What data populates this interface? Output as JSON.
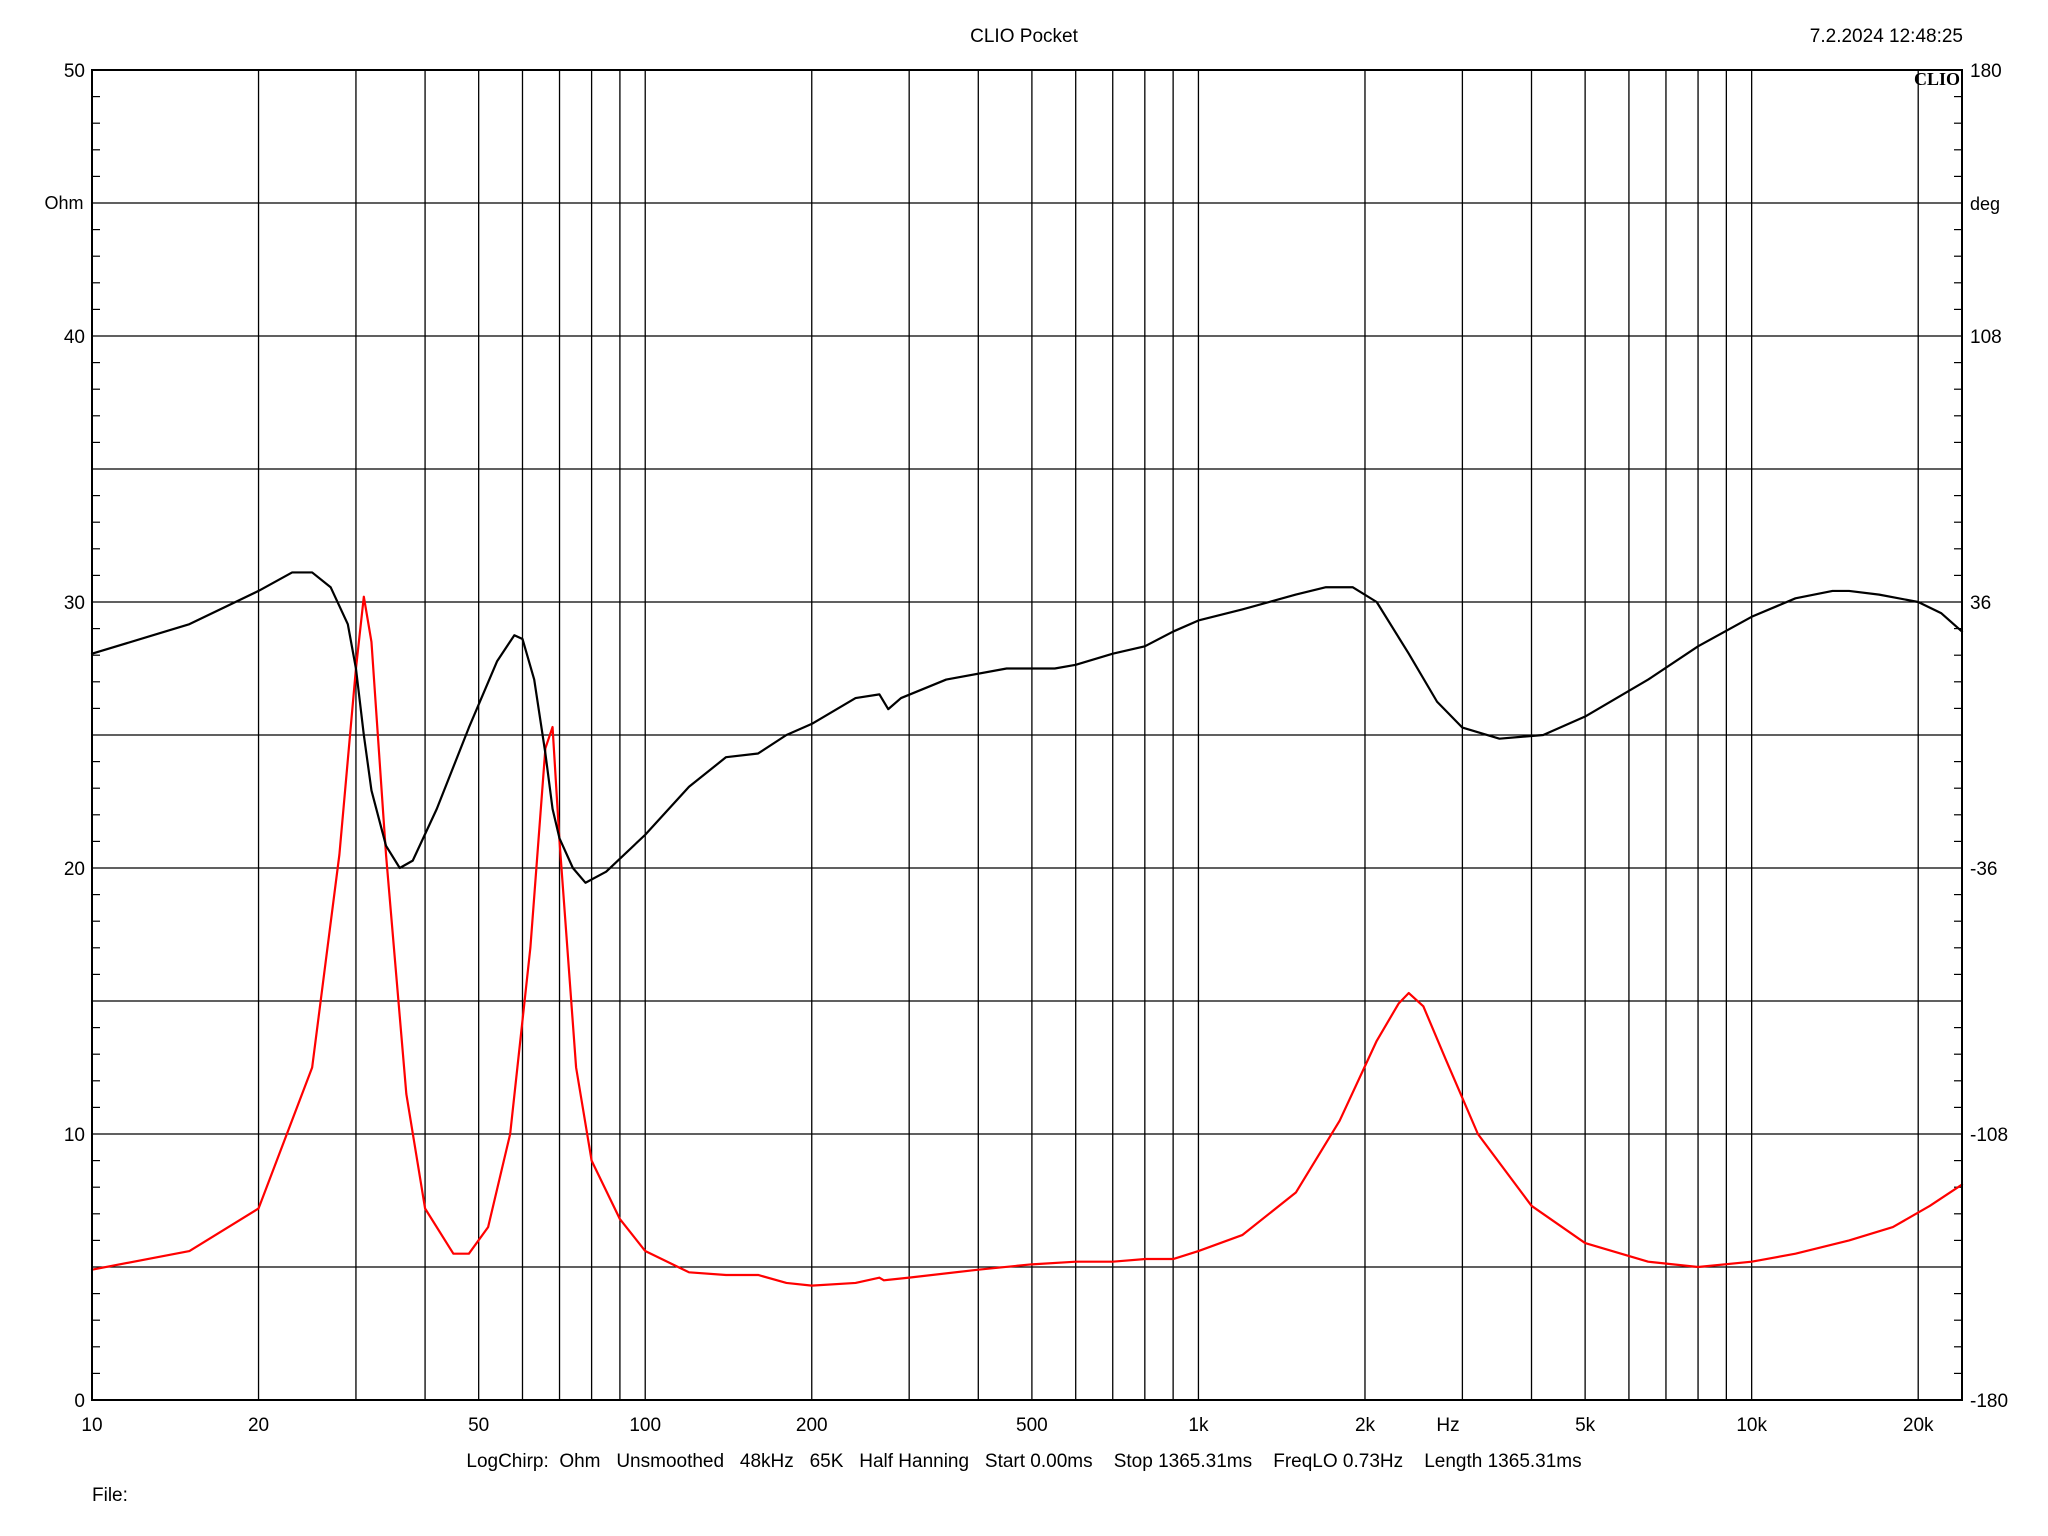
{
  "header": {
    "title": "CLIO Pocket",
    "timestamp": "7.2.2024 12:48:25",
    "logo": "CLIO"
  },
  "footer": {
    "settings": "LogChirp:  Ohm   Unsmoothed   48kHz   65K   Half Hanning   Start 0.00ms    Stop 1365.31ms    FreqLO 0.73Hz    Length 1365.31ms",
    "file_label": "File:"
  },
  "chart_data": {
    "type": "line",
    "x_scale": "log",
    "xlim": [
      10,
      24000
    ],
    "xlabel": "Hz",
    "x_ticks": [
      {
        "value": 10,
        "label": "10"
      },
      {
        "value": 20,
        "label": "20"
      },
      {
        "value": 50,
        "label": "50"
      },
      {
        "value": 100,
        "label": "100"
      },
      {
        "value": 200,
        "label": "200"
      },
      {
        "value": 500,
        "label": "500"
      },
      {
        "value": 1000,
        "label": "1k"
      },
      {
        "value": 2000,
        "label": "2k"
      },
      {
        "value": 5000,
        "label": "5k"
      },
      {
        "value": 10000,
        "label": "10k"
      },
      {
        "value": 20000,
        "label": "20k"
      }
    ],
    "y_left": {
      "label": "Ohm",
      "ylim": [
        0,
        50
      ],
      "ticks": [
        0,
        10,
        20,
        30,
        40,
        50
      ]
    },
    "y_right": {
      "label": "deg",
      "ylim": [
        -180,
        180
      ],
      "ticks": [
        -180,
        -108,
        -36,
        36,
        108,
        180
      ]
    },
    "grid": true,
    "series": [
      {
        "axis": "left",
        "color": "#ff0000",
        "points": [
          [
            10,
            4.9
          ],
          [
            15,
            5.6
          ],
          [
            20,
            7.2
          ],
          [
            25,
            12.5
          ],
          [
            28,
            20.5
          ],
          [
            30,
            27.5
          ],
          [
            31,
            30.2
          ],
          [
            32,
            28.5
          ],
          [
            34,
            20.5
          ],
          [
            37,
            11.5
          ],
          [
            40,
            7.2
          ],
          [
            45,
            5.5
          ],
          [
            48,
            5.5
          ],
          [
            52,
            6.5
          ],
          [
            57,
            10.0
          ],
          [
            62,
            17.0
          ],
          [
            66,
            24.5
          ],
          [
            68,
            25.3
          ],
          [
            70,
            21.0
          ],
          [
            75,
            12.5
          ],
          [
            80,
            9.0
          ],
          [
            90,
            6.8
          ],
          [
            100,
            5.6
          ],
          [
            120,
            4.8
          ],
          [
            140,
            4.7
          ],
          [
            160,
            4.7
          ],
          [
            180,
            4.4
          ],
          [
            200,
            4.3
          ],
          [
            240,
            4.4
          ],
          [
            265,
            4.6
          ],
          [
            270,
            4.5
          ],
          [
            300,
            4.6
          ],
          [
            400,
            4.9
          ],
          [
            500,
            5.1
          ],
          [
            600,
            5.2
          ],
          [
            700,
            5.2
          ],
          [
            800,
            5.3
          ],
          [
            900,
            5.3
          ],
          [
            1000,
            5.6
          ],
          [
            1200,
            6.2
          ],
          [
            1500,
            7.8
          ],
          [
            1800,
            10.5
          ],
          [
            2100,
            13.5
          ],
          [
            2300,
            14.9
          ],
          [
            2400,
            15.3
          ],
          [
            2550,
            14.8
          ],
          [
            2800,
            12.8
          ],
          [
            3200,
            10.0
          ],
          [
            4000,
            7.3
          ],
          [
            5000,
            5.9
          ],
          [
            6500,
            5.2
          ],
          [
            8000,
            5.0
          ],
          [
            10000,
            5.2
          ],
          [
            12000,
            5.5
          ],
          [
            15000,
            6.0
          ],
          [
            18000,
            6.5
          ],
          [
            21000,
            7.3
          ],
          [
            24000,
            8.1
          ]
        ]
      },
      {
        "axis": "right",
        "color": "#000000",
        "points": [
          [
            10,
            22
          ],
          [
            15,
            30
          ],
          [
            20,
            39
          ],
          [
            23,
            44
          ],
          [
            25,
            44
          ],
          [
            27,
            40
          ],
          [
            29,
            30
          ],
          [
            30,
            18
          ],
          [
            31,
            0
          ],
          [
            32,
            -15
          ],
          [
            34,
            -30
          ],
          [
            36,
            -36
          ],
          [
            38,
            -34
          ],
          [
            42,
            -20
          ],
          [
            48,
            2
          ],
          [
            54,
            20
          ],
          [
            58,
            27
          ],
          [
            60,
            26
          ],
          [
            63,
            15
          ],
          [
            66,
            -5
          ],
          [
            68,
            -20
          ],
          [
            70,
            -28
          ],
          [
            74,
            -36
          ],
          [
            78,
            -40
          ],
          [
            85,
            -37
          ],
          [
            100,
            -27
          ],
          [
            120,
            -14
          ],
          [
            140,
            -6
          ],
          [
            160,
            -5
          ],
          [
            180,
            0
          ],
          [
            200,
            3
          ],
          [
            240,
            10
          ],
          [
            265,
            11
          ],
          [
            275,
            7
          ],
          [
            290,
            10
          ],
          [
            350,
            15
          ],
          [
            450,
            18
          ],
          [
            550,
            18
          ],
          [
            600,
            19
          ],
          [
            700,
            22
          ],
          [
            800,
            24
          ],
          [
            900,
            28
          ],
          [
            1000,
            31
          ],
          [
            1200,
            34
          ],
          [
            1500,
            38
          ],
          [
            1700,
            40
          ],
          [
            1900,
            40
          ],
          [
            2100,
            36
          ],
          [
            2400,
            22
          ],
          [
            2700,
            9
          ],
          [
            3000,
            2
          ],
          [
            3500,
            -1
          ],
          [
            4200,
            0
          ],
          [
            5000,
            5
          ],
          [
            6500,
            15
          ],
          [
            8000,
            24
          ],
          [
            10000,
            32
          ],
          [
            12000,
            37
          ],
          [
            14000,
            39
          ],
          [
            15000,
            39
          ],
          [
            17000,
            38
          ],
          [
            20000,
            36
          ],
          [
            22000,
            33
          ],
          [
            24000,
            28
          ]
        ]
      }
    ]
  }
}
